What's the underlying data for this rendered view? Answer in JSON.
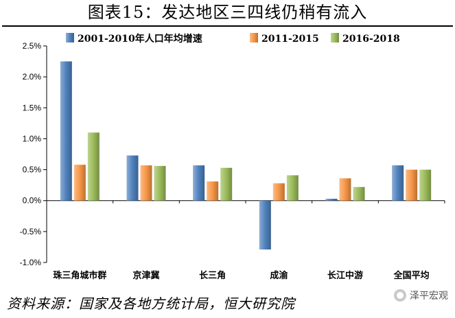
{
  "title": "图表15：发达地区三四线仍稍有流入",
  "source": "资料来源：国家及各地方统计局，恒大研究院",
  "watermark": "泽平宏观",
  "chart_data": {
    "type": "bar",
    "categories": [
      "珠三角城市群",
      "京津冀",
      "长三角",
      "成渝",
      "长江中游",
      "全国平均"
    ],
    "series": [
      {
        "name": "2001-2010年人口年均增速",
        "values": [
          2.25,
          0.73,
          0.57,
          -0.79,
          0.03,
          0.57
        ],
        "color": "#4f81bd"
      },
      {
        "name": "2011-2015",
        "values": [
          0.58,
          0.57,
          0.31,
          0.28,
          0.36,
          0.5
        ],
        "color": "#f79646"
      },
      {
        "name": "2016-2018",
        "values": [
          1.1,
          0.56,
          0.53,
          0.41,
          0.22,
          0.5
        ],
        "color": "#9bbb59"
      }
    ],
    "ylim": [
      -1.0,
      2.5
    ],
    "yticks": [
      -1.0,
      -0.5,
      0.0,
      0.5,
      1.0,
      1.5,
      2.0,
      2.5
    ],
    "ytick_labels": [
      "-1.0%",
      "-0.5%",
      "0.0%",
      "0.5%",
      "1.0%",
      "1.5%",
      "2.0%",
      "2.5%"
    ],
    "xlabel": "",
    "ylabel": "",
    "legend": "top"
  }
}
